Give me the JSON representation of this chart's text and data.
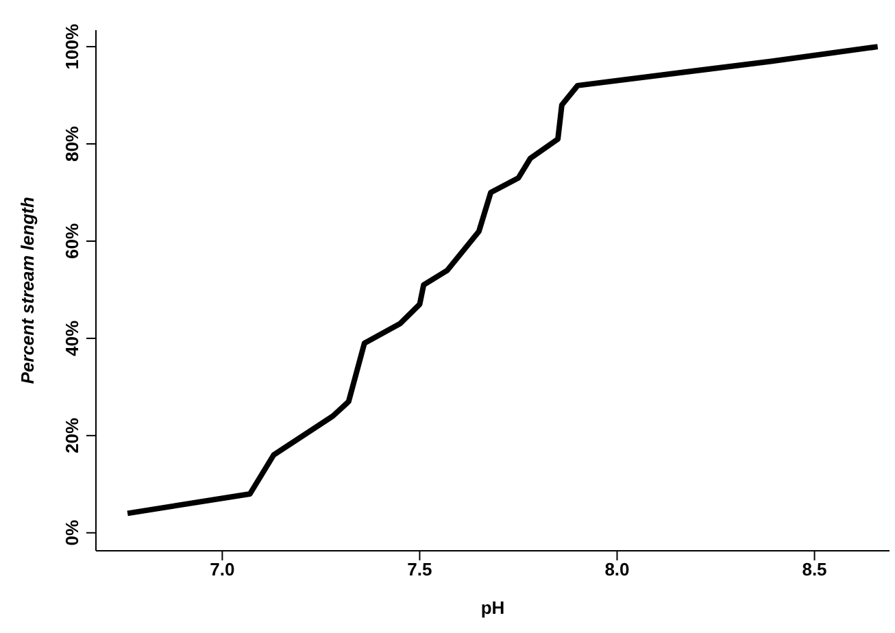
{
  "chart_data": {
    "type": "line",
    "xlabel": "pH",
    "ylabel": "Percent stream length",
    "x": [
      6.76,
      7.07,
      7.13,
      7.28,
      7.32,
      7.36,
      7.45,
      7.5,
      7.51,
      7.57,
      7.65,
      7.68,
      7.75,
      7.78,
      7.85,
      7.86,
      7.9,
      8.39,
      8.66
    ],
    "series": [
      {
        "color": "#000000",
        "values": [
          4,
          8,
          16,
          24,
          27,
          39,
          43,
          47,
          51,
          54,
          62,
          70,
          73,
          77,
          81,
          88,
          92,
          97,
          100
        ]
      }
    ],
    "xlim": [
      6.68,
      8.69
    ],
    "xticks": [
      {
        "value": 7,
        "label": "7.0"
      },
      7.5,
      {
        "value": 8,
        "label": "8.0"
      },
      8.5
    ],
    "ylim": [
      -3.7,
      103.4
    ],
    "yticks": [
      {
        "value": 0,
        "label": "0%"
      },
      {
        "value": 20,
        "label": "20%"
      },
      {
        "value": 40,
        "label": "40%"
      },
      {
        "value": 60,
        "label": "60%"
      },
      {
        "value": 80,
        "label": "80%"
      },
      {
        "value": 100,
        "label": "100%"
      }
    ],
    "grid": false,
    "legend": false,
    "marker": "none",
    "line_style": "solid"
  }
}
